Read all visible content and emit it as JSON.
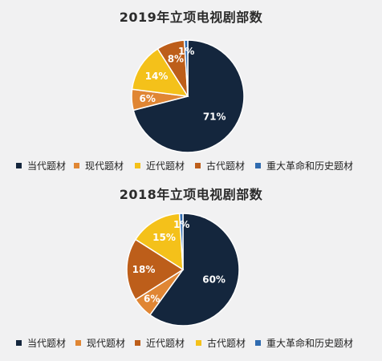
{
  "chart_data": [
    {
      "type": "pie",
      "title": "2019年立项电视剧部数",
      "slices": [
        {
          "label": "当代题材",
          "value": 71,
          "display": "71%",
          "color": "#14263d"
        },
        {
          "label": "现代题材",
          "value": 6,
          "display": "6%",
          "color": "#e08634"
        },
        {
          "label": "近代题材",
          "value": 14,
          "display": "14%",
          "color": "#f4c11a"
        },
        {
          "label": "古代题材",
          "value": 8,
          "display": "8%",
          "color": "#bd5e1a"
        },
        {
          "label": "重大革命和历史题材",
          "value": 1,
          "display": "1%",
          "color": "#2f6bb0"
        }
      ],
      "legend": [
        "当代题材",
        "现代题材",
        "近代题材",
        "古代题材",
        "重大革命和历史题材"
      ],
      "legend_placement": "bottom"
    },
    {
      "type": "pie",
      "title": "2018年立项电视剧部数",
      "slices": [
        {
          "label": "当代题材",
          "value": 60,
          "display": "60%",
          "color": "#14263d"
        },
        {
          "label": "现代题材",
          "value": 6,
          "display": "6%",
          "color": "#e08634"
        },
        {
          "label": "近代题材",
          "value": 18,
          "display": "18%",
          "color": "#bd5e1a"
        },
        {
          "label": "古代题材",
          "value": 15,
          "display": "15%",
          "color": "#f4c11a"
        },
        {
          "label": "重大革命和历史题材",
          "value": 1,
          "display": "1%",
          "color": "#2f6bb0"
        }
      ],
      "legend": [
        "当代题材",
        "现代题材",
        "近代题材",
        "古代题材",
        "重大革命和历史题材"
      ],
      "legend_placement": "bottom"
    }
  ]
}
